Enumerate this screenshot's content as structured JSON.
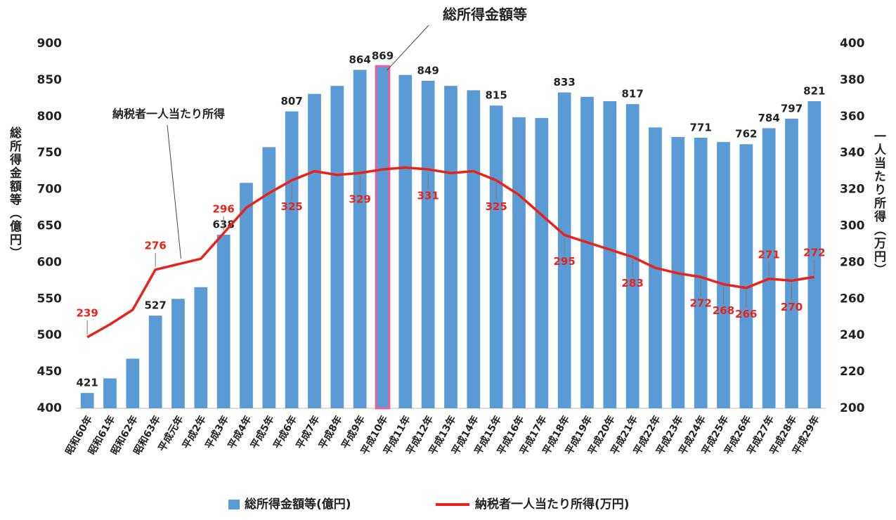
{
  "chart_data": {
    "type": "bar-line",
    "categories": [
      "昭和60年",
      "昭和61年",
      "昭和62年",
      "昭和63年",
      "平成元年",
      "平成2年",
      "平成3年",
      "平成4年",
      "平成5年",
      "平成6年",
      "平成7年",
      "平成8年",
      "平成9年",
      "平成10年",
      "平成11年",
      "平成12年",
      "平成13年",
      "平成14年",
      "平成15年",
      "平成16年",
      "平成17年",
      "平成18年",
      "平成19年",
      "平成20年",
      "平成21年",
      "平成22年",
      "平成23年",
      "平成24年",
      "平成25年",
      "平成26年",
      "平成27年",
      "平成28年",
      "平成29年"
    ],
    "series": [
      {
        "name": "総所得金額等(億円)",
        "type": "bar",
        "axis": "y",
        "color": "#5b9bd5",
        "values": [
          421,
          441,
          468,
          527,
          550,
          566,
          638,
          709,
          758,
          807,
          831,
          842,
          864,
          869,
          857,
          849,
          842,
          836,
          815,
          799,
          798,
          833,
          827,
          821,
          817,
          785,
          772,
          771,
          765,
          762,
          784,
          797,
          821
        ],
        "value_labels": [
          421,
          null,
          null,
          527,
          null,
          null,
          638,
          null,
          null,
          807,
          null,
          null,
          864,
          869,
          null,
          849,
          null,
          null,
          815,
          null,
          null,
          833,
          null,
          null,
          817,
          null,
          null,
          771,
          null,
          762,
          784,
          797,
          821
        ]
      },
      {
        "name": "納税者一人当たり所得(万円)",
        "type": "line",
        "axis": "y2",
        "color": "#e8231a",
        "values": [
          239,
          246,
          254,
          276,
          279,
          282,
          296,
          310,
          318,
          325,
          330,
          328,
          329,
          331,
          332,
          331,
          329,
          330,
          325,
          317,
          306,
          295,
          291,
          287,
          283,
          277,
          274,
          272,
          268,
          266,
          271,
          270,
          272
        ],
        "value_labels": [
          239,
          null,
          null,
          276,
          null,
          null,
          296,
          null,
          null,
          325,
          null,
          null,
          329,
          null,
          null,
          331,
          null,
          null,
          325,
          null,
          null,
          295,
          null,
          null,
          283,
          null,
          null,
          272,
          268,
          266,
          271,
          270,
          272
        ]
      }
    ],
    "y_label": "総所得金額等（億円）",
    "y2_label": "一人当たり所得（万円）",
    "ylim": [
      400,
      900
    ],
    "yticks": [
      400,
      450,
      500,
      550,
      600,
      650,
      700,
      750,
      800,
      850,
      900
    ],
    "y2lim": [
      200,
      400
    ],
    "y2ticks": [
      200,
      220,
      240,
      260,
      280,
      300,
      320,
      340,
      360,
      380,
      400
    ],
    "grid": false,
    "legend": "bottom",
    "highlight": {
      "category": "平成10年",
      "color": "#e8609a"
    },
    "annotations": [
      {
        "text": "総所得金額等",
        "category": "平成10年"
      },
      {
        "text": "納税者一人当たり所得",
        "category": "平成元年"
      }
    ]
  }
}
